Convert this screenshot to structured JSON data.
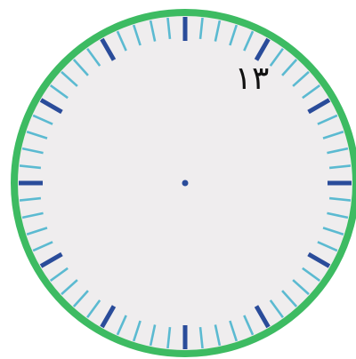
{
  "clock": {
    "label": "١٣",
    "rim_color": "#3dbb62",
    "face_color": "#efedee",
    "major_tick_color": "#2a4c9a",
    "minor_tick_color": "#5bbad1",
    "center_dot_color": "#2a4c9a",
    "label_color": "#111111",
    "major_tick_count": 12,
    "minor_tick_count": 60
  }
}
